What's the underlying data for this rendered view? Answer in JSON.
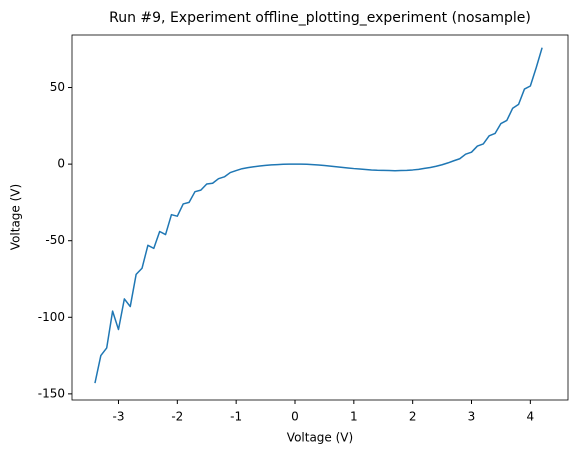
{
  "chart_data": {
    "type": "line",
    "title": "Run #9, Experiment offline_plotting_experiment (nosample)",
    "xlabel": "Voltage (V)",
    "ylabel": "Voltage (V)",
    "x": [
      -3.4,
      -3.3,
      -3.2,
      -3.1,
      -3.0,
      -2.9,
      -2.8,
      -2.7,
      -2.6,
      -2.5,
      -2.4,
      -2.3,
      -2.2,
      -2.1,
      -2.0,
      -1.9,
      -1.8,
      -1.7,
      -1.6,
      -1.5,
      -1.4,
      -1.3,
      -1.2,
      -1.1,
      -1.0,
      -0.9,
      -0.8,
      -0.7,
      -0.6,
      -0.5,
      -0.4,
      -0.3,
      -0.2,
      -0.1,
      0.0,
      0.1,
      0.2,
      0.3,
      0.4,
      0.5,
      0.6,
      0.7,
      0.8,
      0.9,
      1.0,
      1.1,
      1.2,
      1.3,
      1.4,
      1.5,
      1.6,
      1.7,
      1.8,
      1.9,
      2.0,
      2.1,
      2.2,
      2.3,
      2.4,
      2.5,
      2.6,
      2.7,
      2.8,
      2.9,
      3.0,
      3.1,
      3.2,
      3.3,
      3.4,
      3.5,
      3.6,
      3.7,
      3.8,
      3.9,
      4.0,
      4.1,
      4.2
    ],
    "series": [
      {
        "name": "Voltage (V)",
        "color": "#1f77b4",
        "values": [
          -143,
          -125,
          -120,
          -96,
          -108,
          -88,
          -93,
          -72,
          -68,
          -53,
          -55,
          -44,
          -46,
          -33,
          -34,
          -26,
          -25,
          -18,
          -17,
          -13,
          -12.5,
          -9.5,
          -8.3,
          -5.5,
          -4.2,
          -3,
          -2.3,
          -1.7,
          -1.2,
          -0.8,
          -0.5,
          -0.3,
          -0.1,
          0,
          0,
          0,
          -0.1,
          -0.3,
          -0.6,
          -0.9,
          -1.3,
          -1.7,
          -2.1,
          -2.5,
          -2.9,
          -3.2,
          -3.5,
          -3.8,
          -4,
          -4.1,
          -4.2,
          -4.3,
          -4.2,
          -4.1,
          -3.8,
          -3.4,
          -2.8,
          -2.2,
          -1.4,
          -0.4,
          0.8,
          2.2,
          3.5,
          6.5,
          7.8,
          11.8,
          13.2,
          18.5,
          20,
          26.5,
          28.5,
          36.5,
          39,
          49,
          51,
          63,
          76
        ]
      }
    ],
    "xlim": [
      -3.79,
      4.64
    ],
    "ylim": [
      -154,
      84.3
    ],
    "xticks": [
      -3,
      -2,
      -1,
      0,
      1,
      2,
      3,
      4
    ],
    "yticks": [
      -150,
      -100,
      -50,
      0,
      50
    ]
  }
}
